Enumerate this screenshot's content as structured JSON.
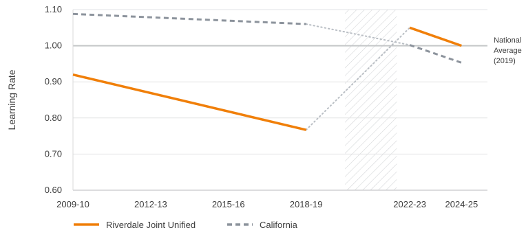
{
  "chart_data": {
    "type": "line",
    "title": "",
    "xlabel": "",
    "ylabel": "Learning Rate",
    "ylim": [
      0.6,
      1.1
    ],
    "y_ticks": [
      "0.60",
      "0.70",
      "0.80",
      "0.90",
      "1.00",
      "1.10"
    ],
    "x_years": [
      2009,
      2025
    ],
    "x_ticks": [
      {
        "year": 2009,
        "label": "2009-10"
      },
      {
        "year": 2012,
        "label": "2012-13"
      },
      {
        "year": 2015,
        "label": "2015-16"
      },
      {
        "year": 2018,
        "label": "2018-19"
      },
      {
        "year": 2022,
        "label": "2022-23"
      },
      {
        "year": 2024,
        "label": "2024-25"
      }
    ],
    "gap_period": {
      "from": 2019.5,
      "to": 2021.5,
      "style": "hatched"
    },
    "reference_line": {
      "value": 1.0,
      "label": [
        "National",
        "Average",
        "(2019)"
      ]
    },
    "series": [
      {
        "name": "Riverdale Joint Unified",
        "color": "#f07f09",
        "style": "solid",
        "segments": [
          [
            {
              "x": 2009,
              "y": 0.92
            },
            {
              "x": 2018,
              "y": 0.767
            }
          ],
          [
            {
              "x": 2022,
              "y": 1.05
            },
            {
              "x": 2024,
              "y": 1.0
            }
          ]
        ],
        "bridge": [
          {
            "x": 2018,
            "y": 0.767
          },
          {
            "x": 2022,
            "y": 1.05
          }
        ]
      },
      {
        "name": "California",
        "color": "#8c939c",
        "style": "dashed",
        "segments": [
          [
            {
              "x": 2009,
              "y": 1.088
            },
            {
              "x": 2018,
              "y": 1.06
            }
          ],
          [
            {
              "x": 2022,
              "y": 1.002
            },
            {
              "x": 2024,
              "y": 0.953
            }
          ]
        ],
        "bridge": [
          {
            "x": 2018,
            "y": 1.06
          },
          {
            "x": 2022,
            "y": 1.002
          }
        ]
      }
    ],
    "legend_position": "bottom-left",
    "grid": "horizontal"
  }
}
